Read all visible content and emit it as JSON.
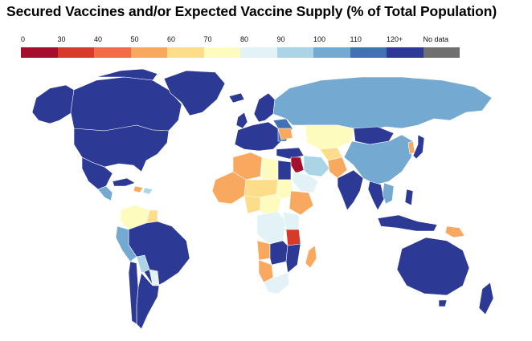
{
  "title": "Secured Vaccines and/or Expected Vaccine Supply (% of Total Population)",
  "legend": {
    "labels": [
      "0",
      "30",
      "40",
      "50",
      "60",
      "70",
      "80",
      "90",
      "100",
      "110",
      "120+",
      "No data"
    ],
    "colors": [
      "#a50f2d",
      "#d83a2a",
      "#f26d45",
      "#f9a95f",
      "#fddc8a",
      "#fefbbf",
      "#e2f2f6",
      "#abd5e7",
      "#74a9d1",
      "#4272b5",
      "#2c3a95",
      "#6f6f6f"
    ]
  },
  "colors": {
    "band_0_30": "#a50f2d",
    "band_30_40": "#d83a2a",
    "band_40_50": "#f26d45",
    "band_50_60": "#f9a95f",
    "band_60_70": "#fddc8a",
    "band_70_80": "#fefbbf",
    "band_80_90": "#e2f2f6",
    "band_90_100": "#abd5e7",
    "band_100_110": "#74a9d1",
    "band_110_120": "#4272b5",
    "band_120_plus": "#2c3a95",
    "no_data": "#6f6f6f"
  }
}
